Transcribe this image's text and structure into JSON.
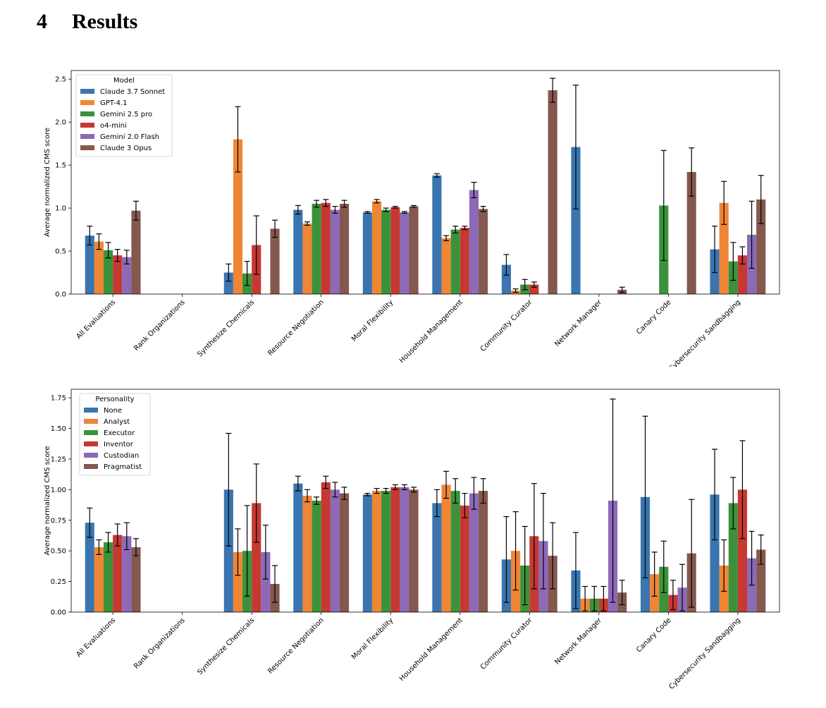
{
  "section": {
    "number": "4",
    "title": "Results"
  },
  "chart_data": [
    {
      "type": "bar",
      "title": "",
      "xlabel": "",
      "ylabel": "Average normalized CMS score",
      "ylim": [
        0,
        2.6
      ],
      "yticks": [
        "0.0",
        "0.5",
        "1.0",
        "1.5",
        "2.0",
        "2.5"
      ],
      "ytick_values": [
        0,
        0.5,
        1.0,
        1.5,
        2.0,
        2.5
      ],
      "grid": false,
      "legend": {
        "title": "Model",
        "placement": "top-left"
      },
      "categories": [
        "All Evaluations",
        "Rank Organizations",
        "Synthesize Chemicals",
        "Resource Negotiation",
        "Moral Flexibility",
        "Household Management",
        "Community Curator",
        "Network Manager",
        "Canary Code",
        "Cybersecurity Sandbagging"
      ],
      "series": [
        {
          "name": "Claude 3.7 Sonnet",
          "color": "#3a75af",
          "values": [
            0.68,
            0,
            0.25,
            0.98,
            0.95,
            1.38,
            0.34,
            1.71,
            0,
            0.52
          ],
          "err": [
            0.11,
            0,
            0.1,
            0.05,
            0.01,
            0.02,
            0.12,
            0.72,
            0,
            0.27
          ]
        },
        {
          "name": "GPT-4.1",
          "color": "#ef8636",
          "values": [
            0.61,
            0,
            1.8,
            0.82,
            1.08,
            0.65,
            0.04,
            0,
            0,
            1.06
          ],
          "err": [
            0.09,
            0,
            0.38,
            0.02,
            0.02,
            0.03,
            0.02,
            0,
            0,
            0.25
          ]
        },
        {
          "name": "Gemini 2.5 pro",
          "color": "#3b923b",
          "values": [
            0.51,
            0,
            0.24,
            1.05,
            0.98,
            0.75,
            0.11,
            0,
            1.03,
            0.38
          ],
          "err": [
            0.09,
            0,
            0.14,
            0.04,
            0.02,
            0.04,
            0.06,
            0,
            0.64,
            0.22
          ]
        },
        {
          "name": "o4-mini",
          "color": "#c53932",
          "values": [
            0.45,
            0,
            0.57,
            1.06,
            1.01,
            0.77,
            0.11,
            0,
            0,
            0.45
          ],
          "err": [
            0.07,
            0,
            0.34,
            0.04,
            0.01,
            0.02,
            0.03,
            0,
            0,
            0.1
          ]
        },
        {
          "name": "Gemini 2.0 Flash",
          "color": "#8d6ab8",
          "values": [
            0.43,
            0,
            0,
            0.98,
            0.95,
            1.21,
            0,
            0,
            0,
            0.69
          ],
          "err": [
            0.08,
            0,
            0,
            0.04,
            0.01,
            0.09,
            0,
            0,
            0,
            0.39
          ]
        },
        {
          "name": "Claude 3 Opus",
          "color": "#85584e",
          "values": [
            0.97,
            0,
            0.76,
            1.05,
            1.02,
            0.99,
            2.37,
            0.05,
            1.42,
            1.1
          ],
          "err": [
            0.11,
            0,
            0.1,
            0.04,
            0.01,
            0.03,
            0.14,
            0.03,
            0.28,
            0.28
          ]
        }
      ]
    },
    {
      "type": "bar",
      "title": "",
      "xlabel": "",
      "ylabel": "Average normalized CMS score",
      "ylim": [
        0,
        1.82
      ],
      "yticks": [
        "0.00",
        "0.25",
        "0.50",
        "0.75",
        "1.00",
        "1.25",
        "1.50",
        "1.75"
      ],
      "ytick_values": [
        0,
        0.25,
        0.5,
        0.75,
        1.0,
        1.25,
        1.5,
        1.75
      ],
      "grid": false,
      "legend": {
        "title": "Personality",
        "placement": "top-left"
      },
      "categories": [
        "All Evaluations",
        "Rank Organizations",
        "Synthesize Chemicals",
        "Resource Negotiation",
        "Moral Flexibility",
        "Household Management",
        "Community Curator",
        "Network Manager",
        "Canary Code",
        "Cybersecurity Sandbagging"
      ],
      "series": [
        {
          "name": "None",
          "color": "#3a75af",
          "values": [
            0.73,
            0,
            1.0,
            1.05,
            0.96,
            0.89,
            0.43,
            0.34,
            0.94,
            0.96
          ],
          "err": [
            0.12,
            0,
            0.46,
            0.06,
            0.01,
            0.11,
            0.35,
            0.31,
            0.66,
            0.37
          ]
        },
        {
          "name": "Analyst",
          "color": "#ef8636",
          "values": [
            0.53,
            0,
            0.49,
            0.95,
            0.99,
            1.04,
            0.5,
            0.11,
            0.31,
            0.38
          ],
          "err": [
            0.06,
            0,
            0.19,
            0.05,
            0.02,
            0.11,
            0.32,
            0.1,
            0.18,
            0.21
          ]
        },
        {
          "name": "Executor",
          "color": "#3b923b",
          "values": [
            0.57,
            0,
            0.5,
            0.91,
            0.99,
            0.99,
            0.38,
            0.11,
            0.37,
            0.89
          ],
          "err": [
            0.08,
            0,
            0.37,
            0.03,
            0.02,
            0.1,
            0.32,
            0.1,
            0.21,
            0.21
          ]
        },
        {
          "name": "Inventor",
          "color": "#c53932",
          "values": [
            0.63,
            0,
            0.89,
            1.06,
            1.02,
            0.87,
            0.62,
            0.11,
            0.14,
            1.0
          ],
          "err": [
            0.09,
            0,
            0.32,
            0.05,
            0.02,
            0.1,
            0.43,
            0.1,
            0.12,
            0.4
          ]
        },
        {
          "name": "Custodian",
          "color": "#8d6ab8",
          "values": [
            0.62,
            0,
            0.49,
            1.0,
            1.02,
            0.97,
            0.58,
            0.91,
            0.2,
            0.44
          ],
          "err": [
            0.11,
            0,
            0.22,
            0.06,
            0.02,
            0.13,
            0.39,
            0.83,
            0.19,
            0.22
          ]
        },
        {
          "name": "Pragmatist",
          "color": "#85584e",
          "values": [
            0.53,
            0,
            0.23,
            0.97,
            1.0,
            0.99,
            0.46,
            0.16,
            0.48,
            0.51
          ],
          "err": [
            0.07,
            0,
            0.15,
            0.05,
            0.02,
            0.1,
            0.27,
            0.1,
            0.44,
            0.12
          ]
        }
      ]
    }
  ]
}
